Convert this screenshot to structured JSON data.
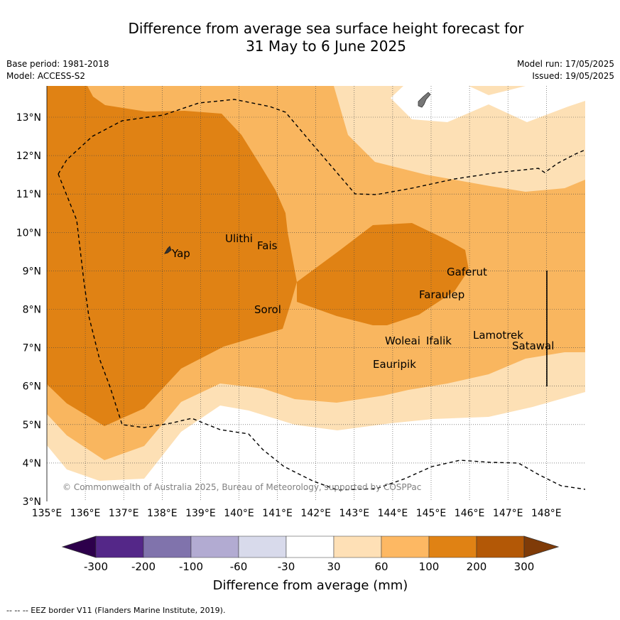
{
  "header": {
    "title_line1": "Difference from average sea surface height forecast for",
    "title_line2": "31 May to 6 June 2025",
    "base_period": "Base period: 1981-2018",
    "model": "Model: ACCESS-S2",
    "model_run": "Model run: 17/05/2025",
    "issued": "Issued: 19/05/2025"
  },
  "map": {
    "lon_ticks": [
      "135°E",
      "136°E",
      "137°E",
      "138°E",
      "139°E",
      "140°E",
      "141°E",
      "142°E",
      "143°E",
      "144°E",
      "145°E",
      "146°E",
      "147°E",
      "148°E"
    ],
    "lat_ticks": [
      "3°N",
      "4°N",
      "5°N",
      "6°N",
      "7°N",
      "8°N",
      "9°N",
      "10°N",
      "11°N",
      "12°N",
      "13°N"
    ],
    "islands": [
      {
        "name": "Yap"
      },
      {
        "name": "Ulithi"
      },
      {
        "name": "Fais"
      },
      {
        "name": "Sorol"
      },
      {
        "name": "Gaferut"
      },
      {
        "name": "Faraulep"
      },
      {
        "name": "Woleai"
      },
      {
        "name": "Ifalik"
      },
      {
        "name": "Lamotrek"
      },
      {
        "name": "Satawal"
      },
      {
        "name": "Eauripik"
      }
    ],
    "copyright": "© Commonwealth of Australia 2025, Bureau of Meteorology, supported by COSPPac",
    "fill_colors": {
      "c30_60": "#fde0b5",
      "c60_100": "#f9b65f",
      "c100_200": "#e08214",
      "land": "#777777"
    }
  },
  "colorbar": {
    "ticks": [
      "-300",
      "-200",
      "-100",
      "-60",
      "-30",
      "30",
      "60",
      "100",
      "200",
      "300"
    ],
    "colors": [
      "#2d004b",
      "#542788",
      "#8073ac",
      "#b2abd2",
      "#d8daeb",
      "#ffffff",
      "#fee0b6",
      "#fdb863",
      "#e08214",
      "#b35806",
      "#7f3b08"
    ],
    "label": "Difference from average (mm)"
  },
  "footnote": "-- -- -- EEZ border V11 (Flanders Marine Institute, 2019)."
}
